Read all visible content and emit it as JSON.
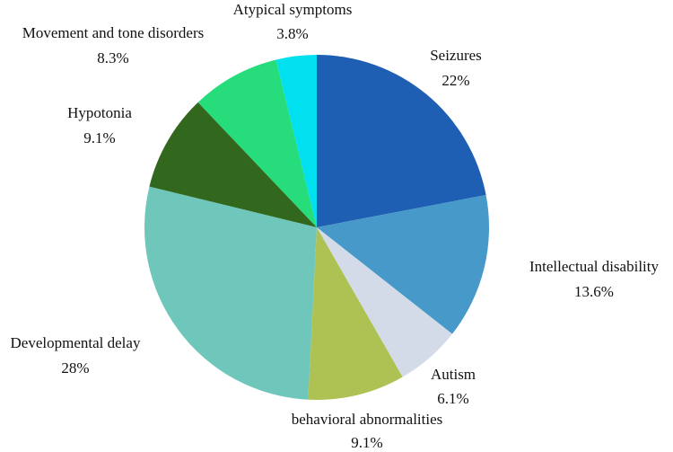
{
  "chart_data": {
    "type": "pie",
    "start_angle_deg": 0,
    "direction": "clockwise",
    "slices": [
      {
        "label": "Seizures",
        "value": 22,
        "value_label": "22%",
        "color": "#1e5fb4"
      },
      {
        "label": "Intellectual disability",
        "value": 13.6,
        "value_label": "13.6%",
        "color": "#4699c8"
      },
      {
        "label": "Autism",
        "value": 6.1,
        "value_label": "6.1%",
        "color": "#d3dbe8"
      },
      {
        "label": "behavioral abnormalities",
        "value": 9.1,
        "value_label": "9.1%",
        "color": "#adc253"
      },
      {
        "label": "Developmental delay",
        "value": 28,
        "value_label": "28%",
        "color": "#6fc7bb"
      },
      {
        "label": "Hypotonia",
        "value": 9.1,
        "value_label": "9.1%",
        "color": "#32681e"
      },
      {
        "label": "Movement and tone disorders",
        "value": 8.3,
        "value_label": "8.3%",
        "color": "#26dc7b"
      },
      {
        "label": "Atypical symptoms",
        "value": 3.8,
        "value_label": "3.8%",
        "color": "#00e0ee"
      }
    ]
  }
}
